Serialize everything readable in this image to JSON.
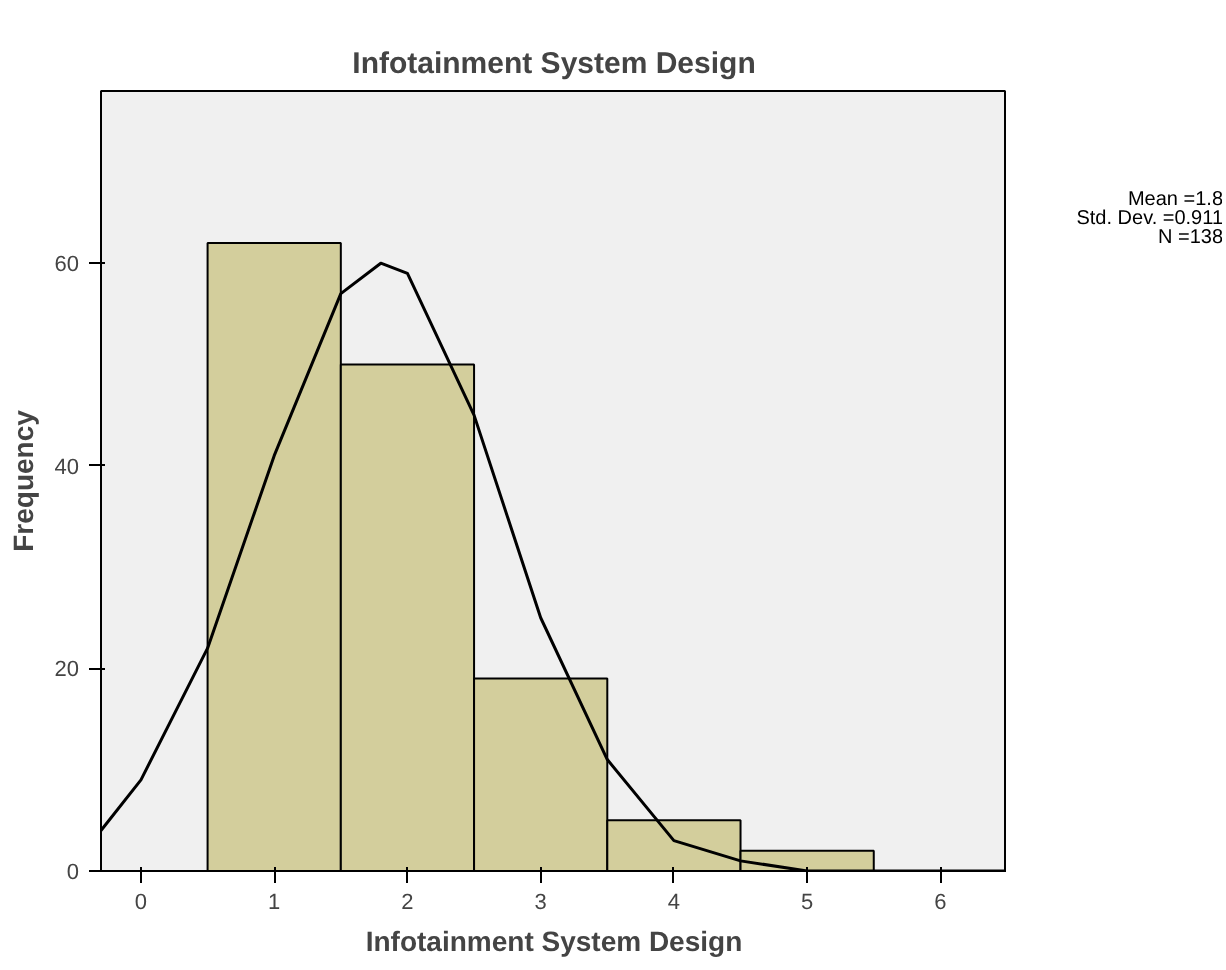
{
  "chart_data": {
    "type": "histogram",
    "title": "Infotainment System Design",
    "xlabel": "Infotainment System Design",
    "ylabel": "Frequency",
    "bins": [
      0.5,
      1.5,
      2.5,
      3.5,
      4.5,
      5.5
    ],
    "values": [
      62,
      50,
      19,
      5,
      2
    ],
    "color": "#d3ce9c",
    "series": [
      {
        "type": "line",
        "color": "#000000",
        "x": [
          -0.3,
          0,
          0.5,
          1,
          1.5,
          1.8,
          2,
          2.5,
          3,
          3.5,
          4,
          4.5,
          5,
          5.5,
          6,
          6.5
        ],
        "values": [
          4,
          9,
          22,
          41,
          57,
          60,
          59,
          45,
          25,
          11,
          3,
          1,
          0,
          0,
          0,
          0
        ]
      }
    ],
    "xlim": [
      -0.3,
      6.5
    ],
    "ylim": [
      0,
      77
    ],
    "xticks": [
      0,
      1,
      2,
      3,
      4,
      5,
      6
    ],
    "yticks": [
      0,
      20,
      40,
      60
    ],
    "grid": false,
    "annotations": [
      "Mean =1.8",
      "Std. Dev. =0.911",
      "N =138"
    ]
  }
}
